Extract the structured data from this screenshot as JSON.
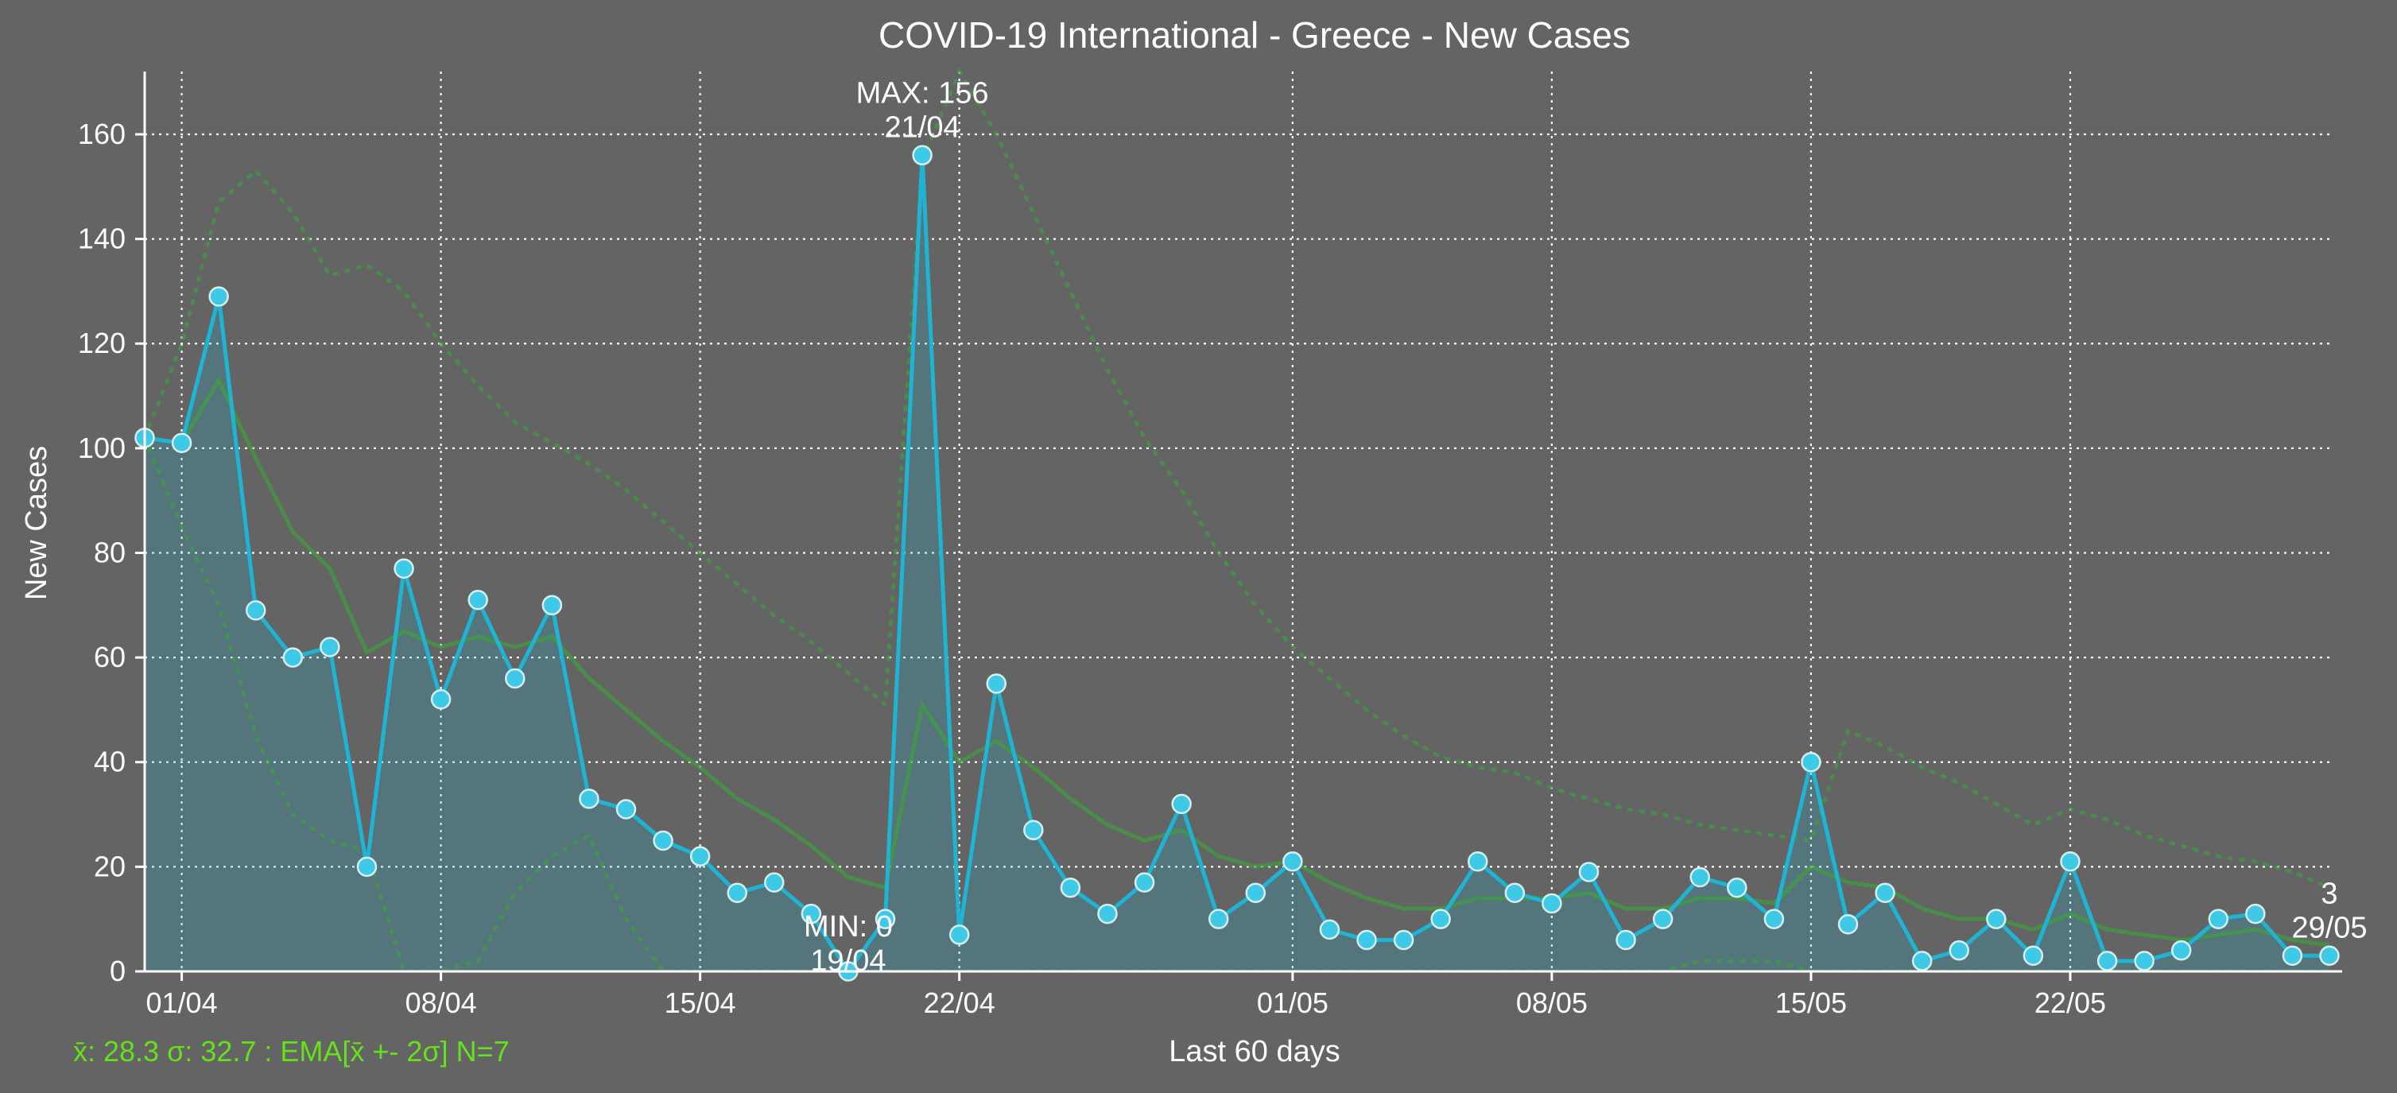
{
  "chart_data": {
    "type": "line",
    "title": "COVID-19 International - Greece - New Cases",
    "xlabel": "Last 60 days",
    "ylabel": "New Cases",
    "ylim": [
      0,
      172
    ],
    "yticks": [
      0,
      20,
      40,
      60,
      80,
      100,
      120,
      140,
      160
    ],
    "xtick_labels": [
      "01/04",
      "08/04",
      "15/04",
      "22/04",
      "01/05",
      "08/05",
      "15/05",
      "22/05"
    ],
    "xtick_days": [
      1,
      8,
      15,
      22,
      31,
      38,
      45,
      52
    ],
    "grid": true,
    "x_dates": "31/03 to 29/05",
    "series": [
      {
        "values": [
          102,
          101,
          129,
          69,
          60,
          62,
          20,
          77,
          52,
          71,
          56,
          70,
          33,
          31,
          25,
          22,
          15,
          17,
          11,
          0,
          10,
          156,
          7,
          55,
          27,
          16,
          11,
          17,
          32,
          10,
          15,
          21,
          8,
          6,
          6,
          10,
          21,
          15,
          13,
          19,
          6,
          10,
          18,
          16,
          10,
          40,
          9,
          15,
          2,
          4,
          10,
          3,
          21,
          2,
          2,
          4,
          10,
          11,
          3,
          3
        ],
        "color": "#1fb3d4"
      },
      {
        "values": [
          102,
          101,
          113,
          98,
          84,
          77,
          61,
          65,
          62,
          64,
          62,
          64,
          56,
          50,
          44,
          39,
          33,
          29,
          24,
          18,
          16,
          51,
          40,
          44,
          39,
          33,
          28,
          25,
          27,
          22,
          20,
          21,
          17,
          14,
          12,
          12,
          14,
          14,
          14,
          15,
          12,
          12,
          14,
          14,
          13,
          20,
          17,
          16,
          12,
          10,
          10,
          8,
          11,
          8,
          7,
          6,
          7,
          8,
          6,
          5
        ],
        "color": "#3e9e3e"
      },
      {
        "values": [
          102,
          120,
          147,
          153,
          145,
          133,
          135,
          130,
          120,
          112,
          105,
          101,
          97,
          92,
          86,
          80,
          74,
          68,
          63,
          57,
          51,
          155,
          172,
          160,
          145,
          130,
          115,
          102,
          92,
          80,
          70,
          62,
          56,
          50,
          45,
          41,
          39,
          38,
          35,
          33,
          31,
          30,
          28,
          27,
          26,
          25,
          46,
          43,
          39,
          36,
          32,
          28,
          31,
          29,
          26,
          24,
          22,
          21,
          19,
          16
        ],
        "color": "#3e9e3e"
      },
      {
        "values": [
          102,
          85,
          70,
          45,
          30,
          25,
          23,
          0,
          0,
          2,
          15,
          22,
          26,
          10,
          0,
          0,
          0,
          0,
          0,
          0,
          0,
          0,
          0,
          0,
          0,
          0,
          0,
          0,
          0,
          0,
          0,
          0,
          0,
          0,
          0,
          0,
          0,
          0,
          0,
          0,
          0,
          0,
          2,
          2,
          2,
          0,
          0,
          0,
          0,
          0,
          0,
          0,
          0,
          0,
          0,
          0,
          0,
          0,
          0,
          0
        ],
        "color": "#3e9e3e"
      }
    ],
    "annotations": {
      "max_label": "MAX: 156",
      "max_date": "21/04",
      "min_label": "MIN: 0",
      "min_date": "19/04",
      "last_value": "3",
      "last_date": "29/05"
    },
    "stats_text": "x̄: 28.3 σ: 32.7 : EMA[x̄ +- 2σ] N=7",
    "stats_color": "#66e01a",
    "background": "#636463"
  }
}
